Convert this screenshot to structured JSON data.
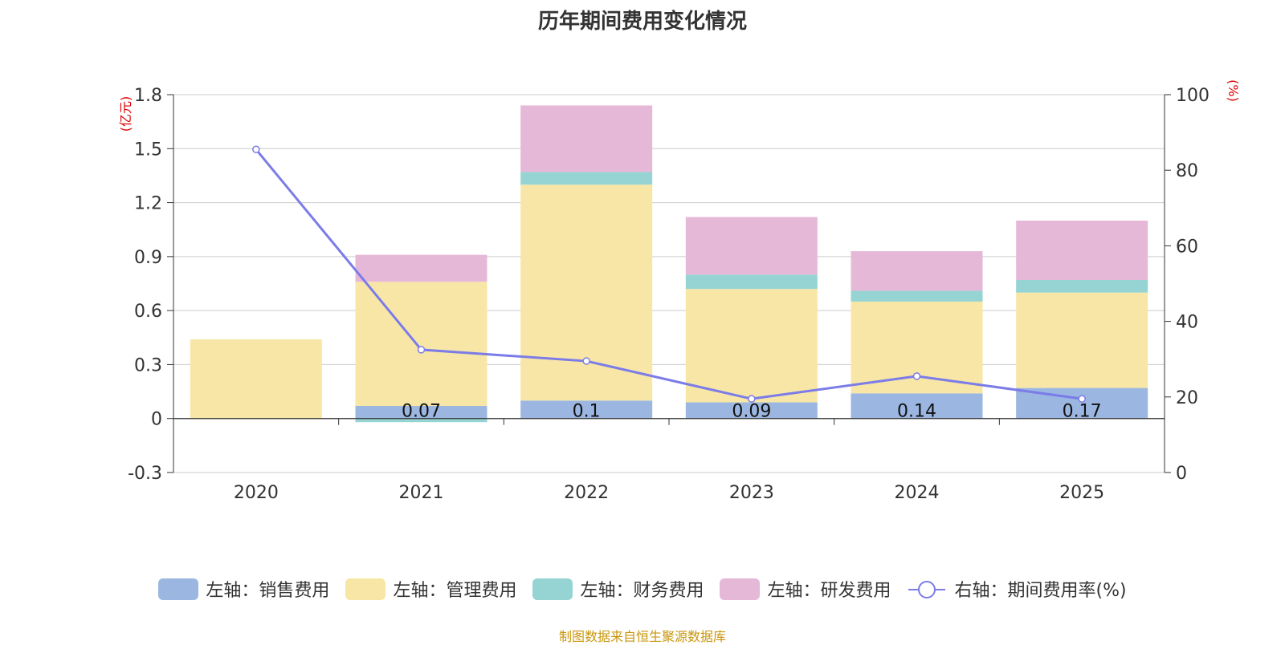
{
  "chart_data": {
    "type": "bar",
    "title": "历年期间费用变化情况",
    "categories": [
      "2020",
      "2021",
      "2022",
      "2023",
      "2024",
      "2025"
    ],
    "left_axis": {
      "unit_label": "(亿元)",
      "ylim": [
        -0.3,
        1.8
      ],
      "ticks": [
        "-0.3",
        "0",
        "0.3",
        "0.6",
        "0.9",
        "1.2",
        "1.5",
        "1.8"
      ]
    },
    "right_axis": {
      "unit_label": "(%)",
      "ylim": [
        0,
        100
      ],
      "ticks": [
        "0",
        "20",
        "40",
        "60",
        "80",
        "100"
      ]
    },
    "series": [
      {
        "name": "左轴：销售费用",
        "type": "bar",
        "color": "#9bb7e1",
        "values": [
          0,
          0.07,
          0.1,
          0.09,
          0.14,
          0.17
        ],
        "labels": [
          "",
          "0.07",
          "0.1",
          "0.09",
          "0.14",
          "0.17"
        ]
      },
      {
        "name": "左轴：管理费用",
        "type": "bar",
        "color": "#f8e6a7",
        "values": [
          0.44,
          0.69,
          1.2,
          0.63,
          0.51,
          0.53
        ]
      },
      {
        "name": "左轴：财务费用",
        "type": "bar",
        "color": "#96d4d4",
        "values": [
          0,
          -0.02,
          0.07,
          0.08,
          0.06,
          0.07
        ]
      },
      {
        "name": "左轴：研发费用",
        "type": "bar",
        "color": "#e6b8d8",
        "values": [
          0,
          0.15,
          0.37,
          0.32,
          0.22,
          0.33
        ]
      },
      {
        "name": "右轴：期间费用率(%)",
        "type": "line",
        "axis": "right",
        "color": "#7b7ce8",
        "values": [
          85.5,
          32.5,
          29.5,
          19.5,
          25.5,
          19.5
        ]
      }
    ]
  },
  "source": "制图数据来自恒生聚源数据库"
}
